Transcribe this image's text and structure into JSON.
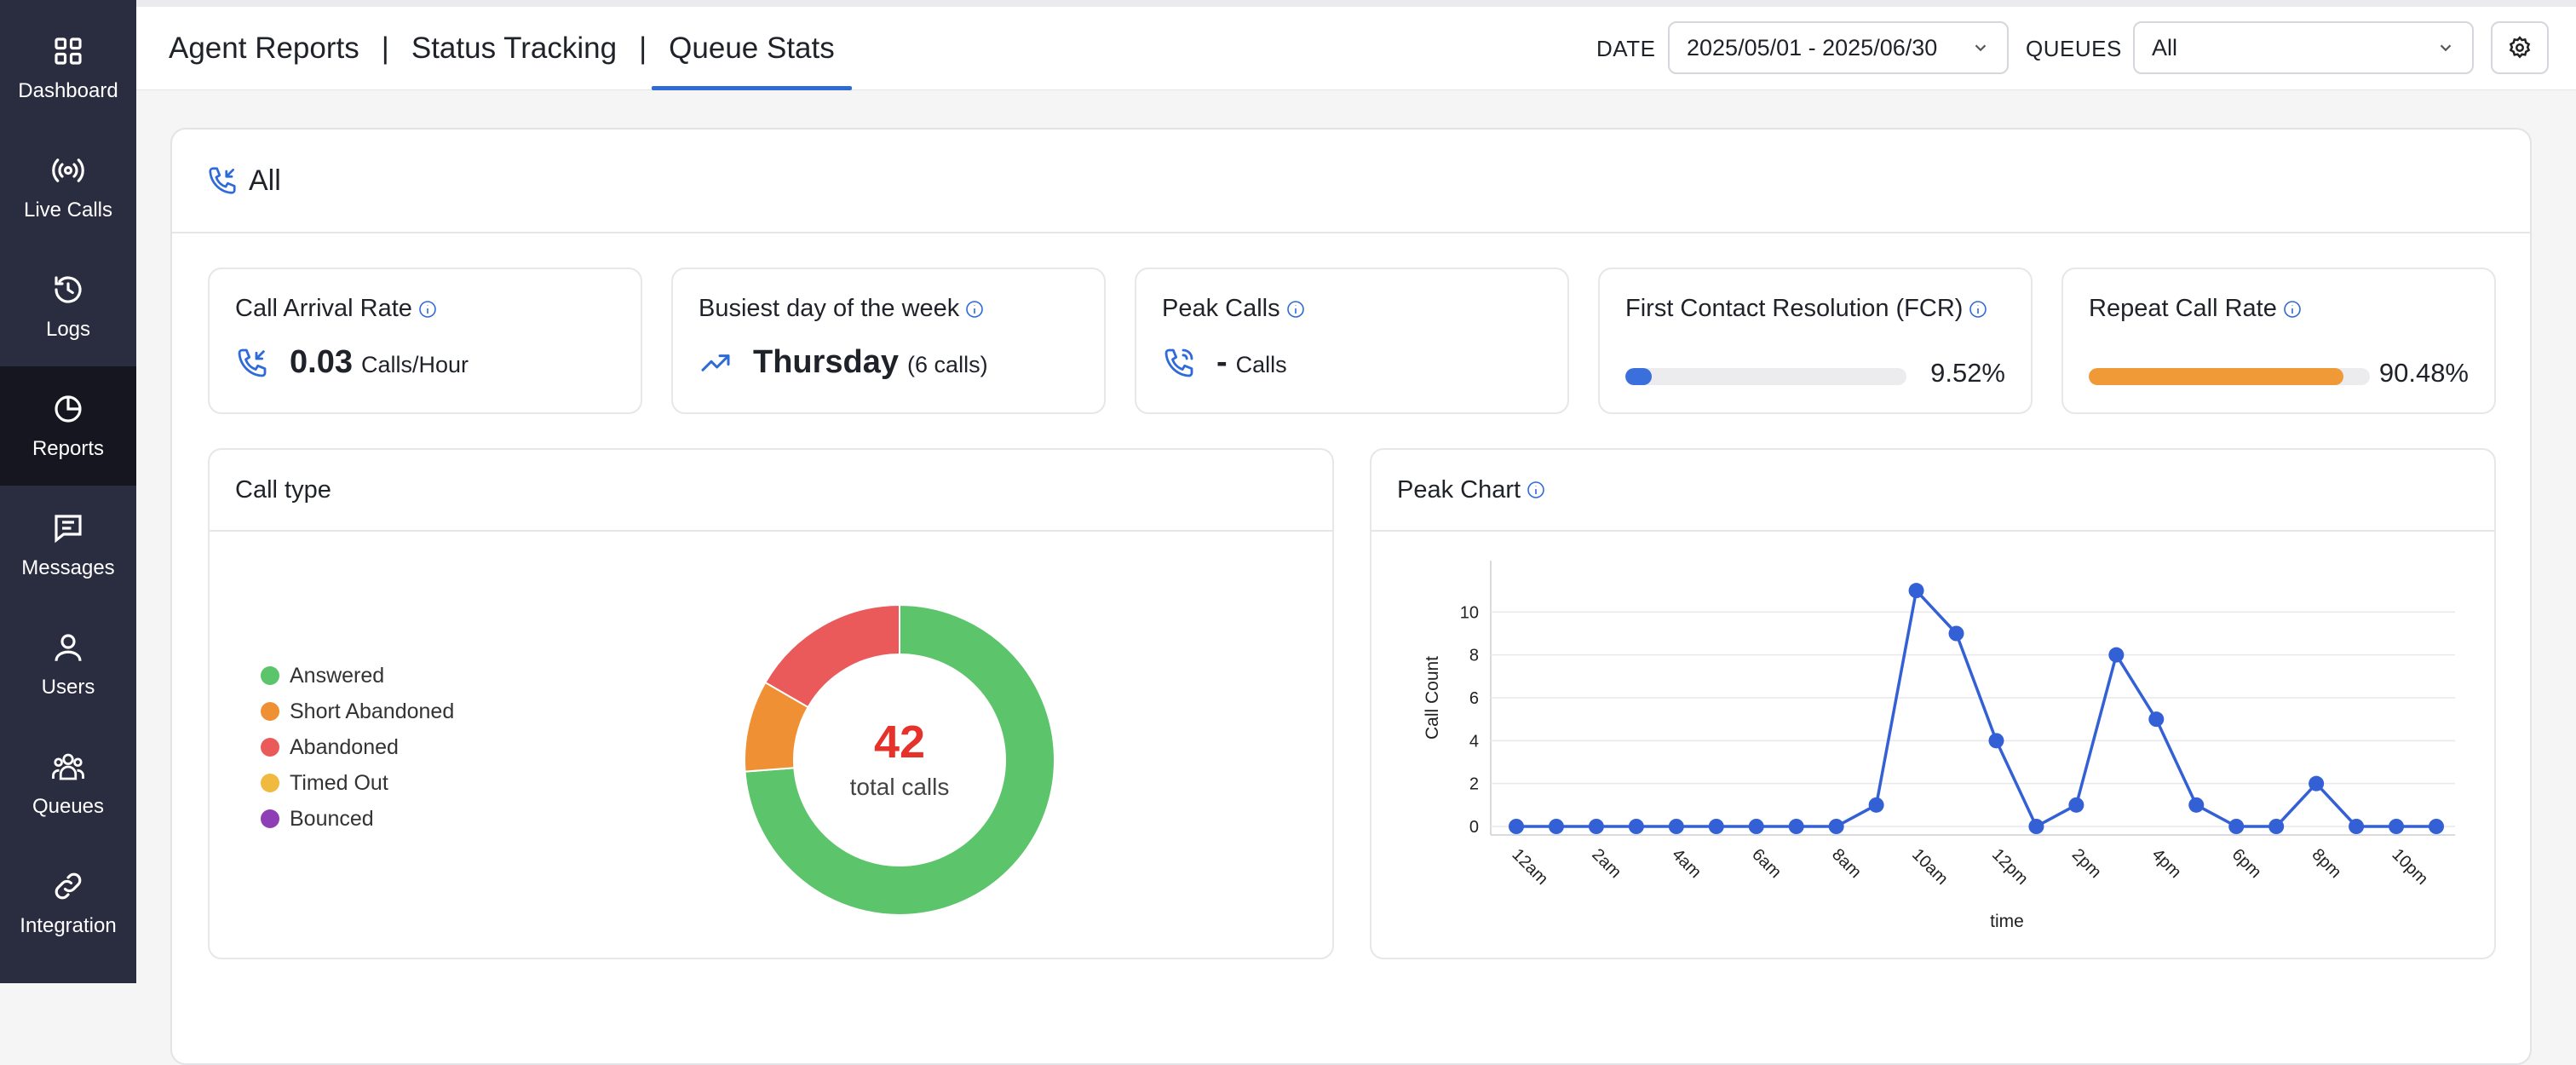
{
  "sidebar": {
    "items": [
      {
        "label": "Dashboard",
        "icon": "dashboard-icon"
      },
      {
        "label": "Live Calls",
        "icon": "broadcast-icon"
      },
      {
        "label": "Logs",
        "icon": "history-icon"
      },
      {
        "label": "Reports",
        "icon": "pie-chart-icon",
        "active": true
      },
      {
        "label": "Messages",
        "icon": "message-icon"
      },
      {
        "label": "Users",
        "icon": "user-icon"
      },
      {
        "label": "Queues",
        "icon": "group-icon"
      },
      {
        "label": "Integration",
        "icon": "link-icon"
      }
    ]
  },
  "header": {
    "tabs": [
      "Agent Reports",
      "Status Tracking",
      "Queue Stats"
    ],
    "separator": "|",
    "active_tab": "Queue Stats",
    "date_label": "DATE",
    "date_value": "2025/05/01 - 2025/06/30",
    "queues_label": "QUEUES",
    "queues_value": "All"
  },
  "panel": {
    "title": "All"
  },
  "stats": {
    "arrival": {
      "title": "Call Arrival Rate",
      "value": "0.03",
      "unit": "Calls/Hour"
    },
    "busiest": {
      "title": "Busiest day of the week",
      "value": "Thursday",
      "unit": "(6 calls)"
    },
    "peak": {
      "title": "Peak Calls",
      "value": "-",
      "unit": "Calls"
    },
    "fcr": {
      "title": "First Contact Resolution (FCR)",
      "percent": 9.52,
      "label": "9.52%",
      "color": "#3a6fdc"
    },
    "repeat": {
      "title": "Repeat Call Rate",
      "percent": 90.48,
      "label": "90.48%",
      "color": "#ef9a36"
    }
  },
  "call_type": {
    "title": "Call type",
    "total": "42",
    "total_label": "total calls",
    "legend": [
      {
        "label": "Answered",
        "color": "#5cc46a"
      },
      {
        "label": "Short Abandoned",
        "color": "#ef9035"
      },
      {
        "label": "Abandoned",
        "color": "#ea5a5a"
      },
      {
        "label": "Timed Out",
        "color": "#f0b93f"
      },
      {
        "label": "Bounced",
        "color": "#8e3fb5"
      }
    ]
  },
  "chart_data": [
    {
      "type": "pie",
      "title": "Call type",
      "categories": [
        "Answered",
        "Short Abandoned",
        "Abandoned",
        "Timed Out",
        "Bounced"
      ],
      "values": [
        31,
        4,
        7,
        0,
        0
      ],
      "colors": [
        "#5cc46a",
        "#ef9035",
        "#ea5a5a",
        "#f0b93f",
        "#8e3fb5"
      ]
    },
    {
      "type": "line",
      "title": "Peak Chart",
      "xlabel": "time",
      "ylabel": "Call Count",
      "x": [
        "12am",
        "1am",
        "2am",
        "3am",
        "4am",
        "5am",
        "6am",
        "7am",
        "8am",
        "9am",
        "10am",
        "11am",
        "12pm",
        "1pm",
        "2pm",
        "3pm",
        "4pm",
        "5pm",
        "6pm",
        "7pm",
        "8pm",
        "9pm",
        "10pm",
        "11pm"
      ],
      "x_ticks": [
        "12am",
        "2am",
        "4am",
        "6am",
        "8am",
        "10am",
        "12pm",
        "2pm",
        "4pm",
        "6pm",
        "8pm",
        "10pm"
      ],
      "values": [
        0,
        0,
        0,
        0,
        0,
        0,
        0,
        0,
        0,
        1,
        11,
        9,
        4,
        0,
        1,
        8,
        5,
        1,
        0,
        0,
        2,
        0,
        0,
        0
      ],
      "y_ticks": [
        0,
        2,
        4,
        6,
        8,
        10
      ],
      "ylim": [
        0,
        12
      ],
      "color": "#3460d6"
    }
  ]
}
